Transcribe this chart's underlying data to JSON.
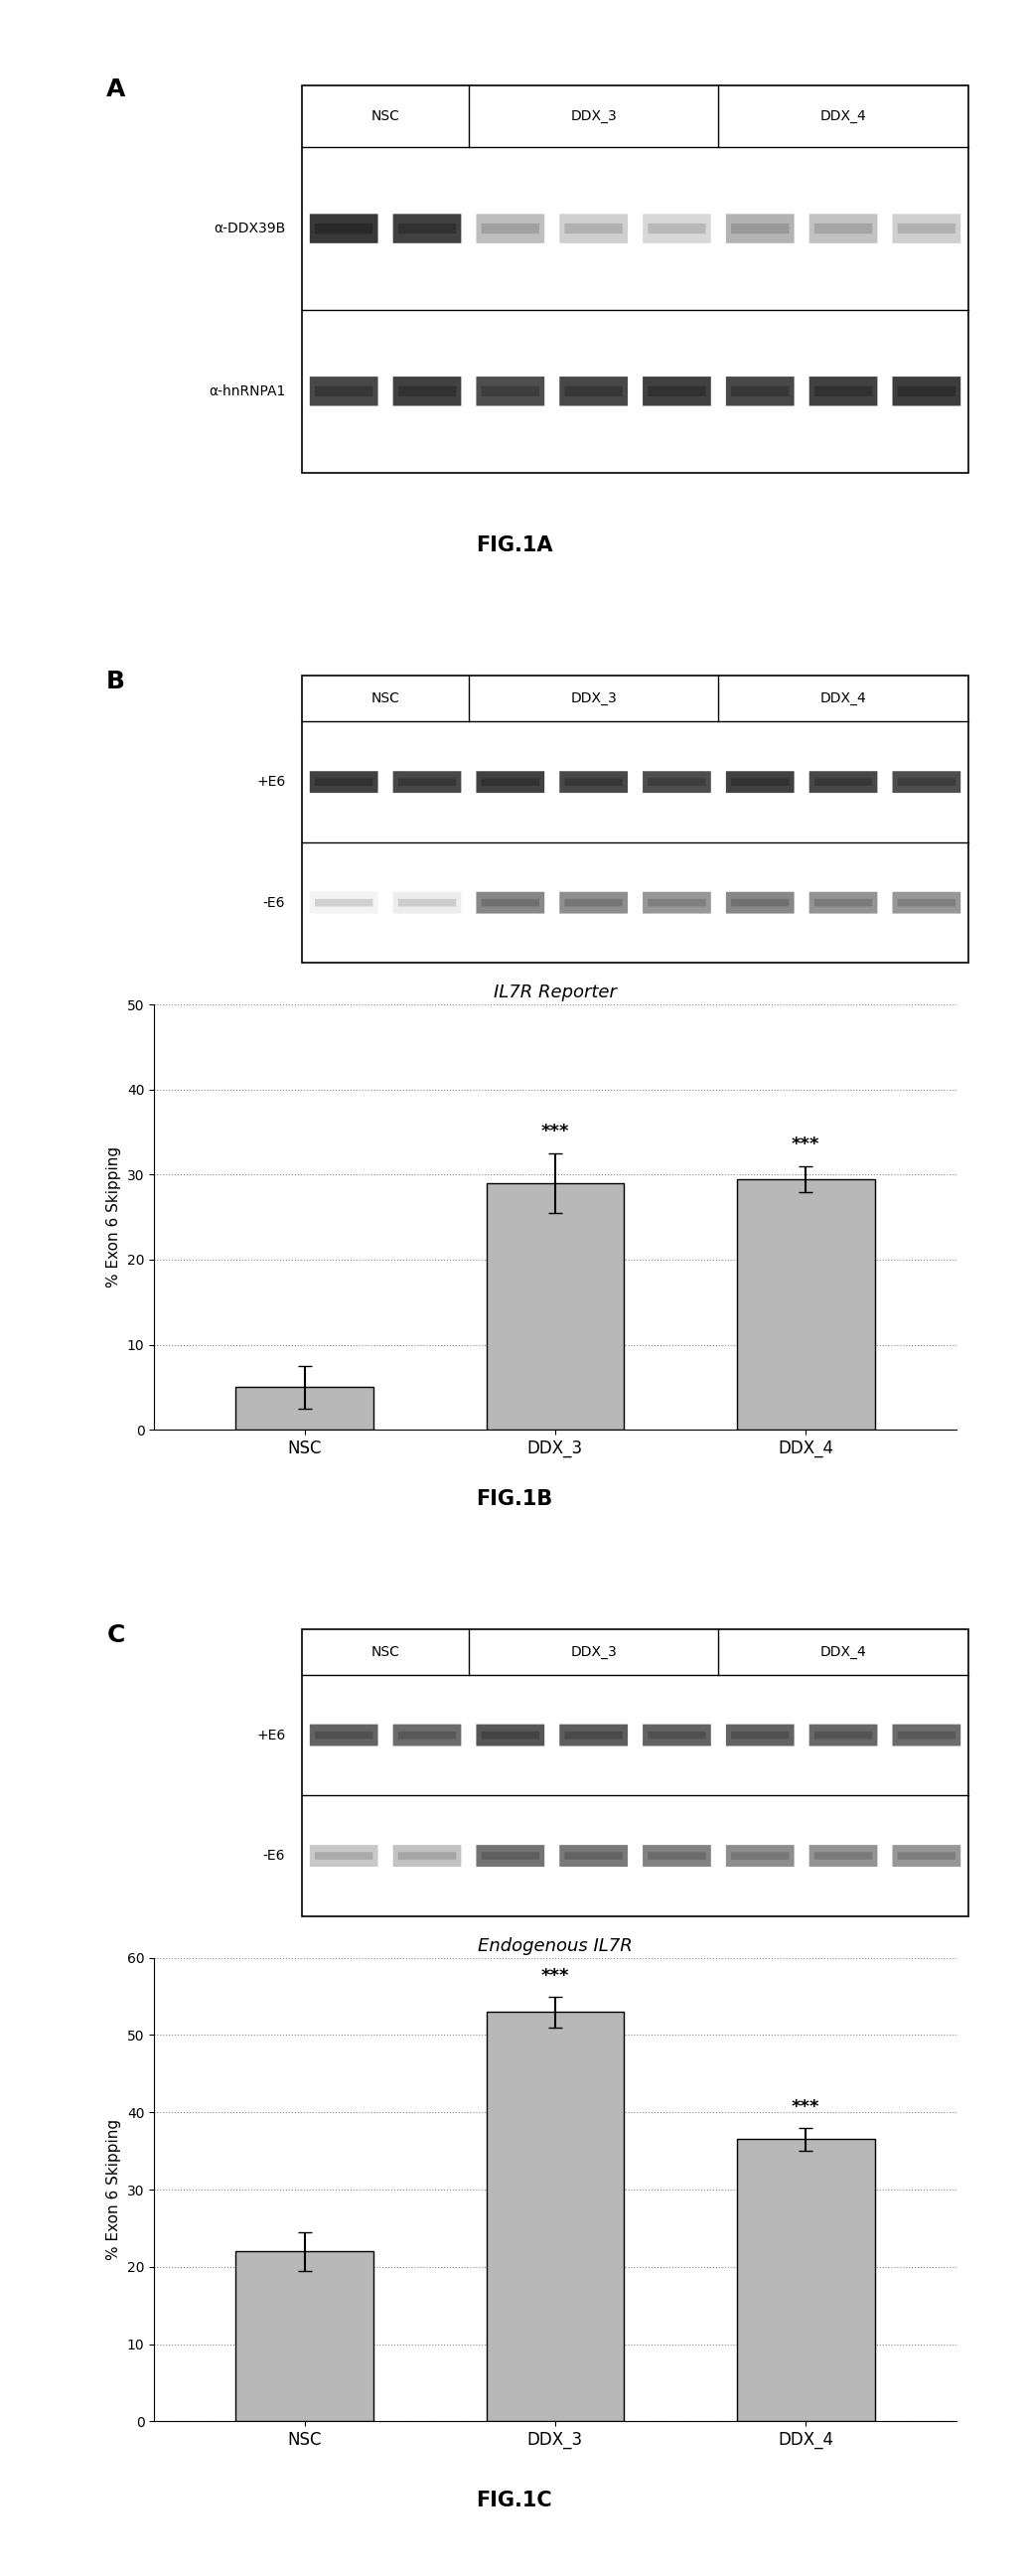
{
  "fig_width": 10.35,
  "fig_height": 25.93,
  "background_color": "#ffffff",
  "panel_A": {
    "label": "A",
    "gel_header": [
      "NSC",
      "DDX_3",
      "DDX_4"
    ],
    "n_lanes_per_group": [
      2,
      3,
      3
    ],
    "row_labels": [
      "α-DDX39B",
      "α-hnRNPA1"
    ],
    "fig_label": "FIG.1A",
    "band_configs": [
      {
        "intensities": [
          0.92,
          0.88,
          0.3,
          0.22,
          0.18,
          0.35,
          0.28,
          0.22
        ]
      },
      {
        "intensities": [
          0.85,
          0.88,
          0.82,
          0.85,
          0.88,
          0.85,
          0.88,
          0.9
        ]
      }
    ]
  },
  "panel_B": {
    "label": "B",
    "gel_header": [
      "NSC",
      "DDX_3",
      "DDX_4"
    ],
    "n_lanes_per_group": [
      2,
      3,
      3
    ],
    "row_labels": [
      "+E6",
      "-E6"
    ],
    "band_configs": [
      {
        "intensities": [
          0.88,
          0.85,
          0.88,
          0.85,
          0.82,
          0.88,
          0.85,
          0.82
        ]
      },
      {
        "intensities": [
          0.05,
          0.08,
          0.55,
          0.52,
          0.48,
          0.55,
          0.5,
          0.48
        ]
      }
    ],
    "chart_title": "IL7R Reporter",
    "ylabel": "% Exon 6 Skipping",
    "categories": [
      "NSC",
      "DDX_3",
      "DDX_4"
    ],
    "values": [
      5.0,
      29.0,
      29.5
    ],
    "errors": [
      2.5,
      3.5,
      1.5
    ],
    "sig_labels": [
      "",
      "***",
      "***"
    ],
    "ylim": [
      0,
      50
    ],
    "yticks": [
      0,
      10,
      20,
      30,
      40,
      50
    ],
    "bar_color": "#b8b8b8",
    "fig_label": "FIG.1B"
  },
  "panel_C": {
    "label": "C",
    "gel_header": [
      "NSC",
      "DDX_3",
      "DDX_4"
    ],
    "n_lanes_per_group": [
      2,
      3,
      3
    ],
    "row_labels": [
      "+E6",
      "-E6"
    ],
    "band_configs": [
      {
        "intensities": [
          0.72,
          0.68,
          0.78,
          0.75,
          0.72,
          0.72,
          0.7,
          0.68
        ]
      },
      {
        "intensities": [
          0.25,
          0.28,
          0.65,
          0.62,
          0.58,
          0.52,
          0.5,
          0.48
        ]
      }
    ],
    "chart_title": "Endogenous IL7R",
    "ylabel": "% Exon 6 Skipping",
    "categories": [
      "NSC",
      "DDX_3",
      "DDX_4"
    ],
    "values": [
      22.0,
      53.0,
      36.5
    ],
    "errors": [
      2.5,
      2.0,
      1.5
    ],
    "sig_labels": [
      "",
      "***",
      "***"
    ],
    "ylim": [
      0,
      60
    ],
    "yticks": [
      0,
      10,
      20,
      30,
      40,
      50,
      60
    ],
    "bar_color": "#b8b8b8",
    "fig_label": "FIG.1C"
  }
}
